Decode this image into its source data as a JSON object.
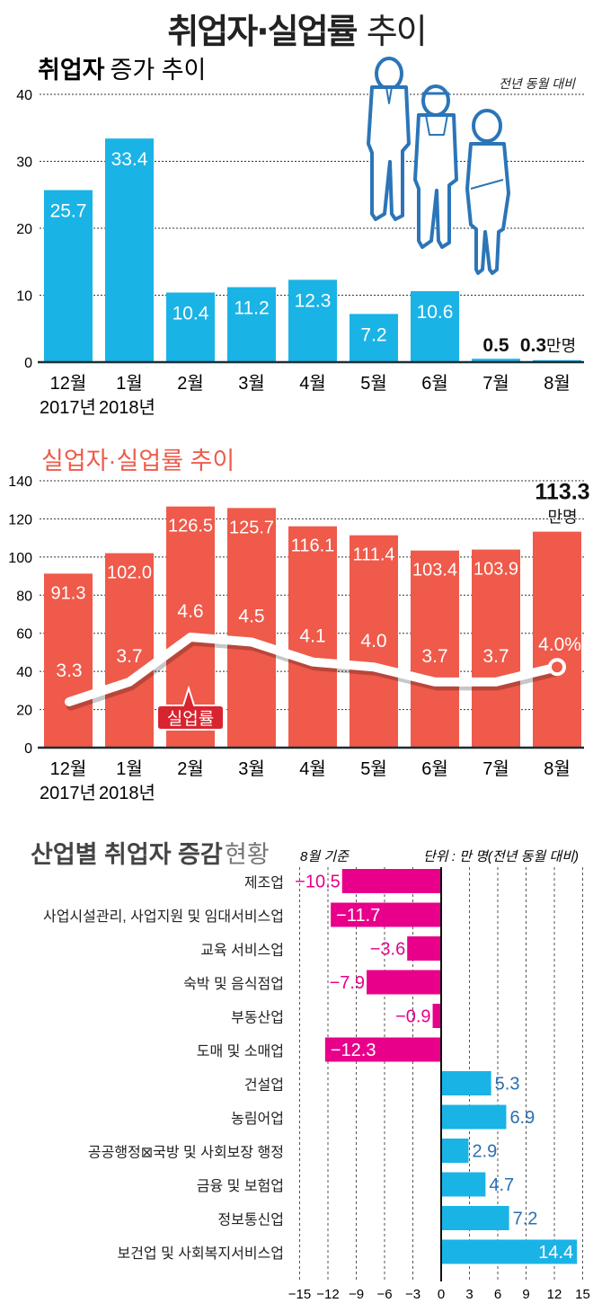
{
  "page": {
    "title_bold": "취업자·실업률",
    "title_light": "추이"
  },
  "colors": {
    "employment_blue": "#1ab3e6",
    "employment_title": "#2a6fb0",
    "unemployment_red": "#ef5a4a",
    "unemployment_title": "#ee5b4b",
    "rate_label_bg": "#d7242f",
    "negative_magenta": "#e8008a",
    "positive_blue": "#1ab3e6",
    "positive_label": "#2a6fb0",
    "grid": "#333333"
  },
  "chart_data": [
    {
      "type": "bar",
      "title": "취업자 증가 추이",
      "title_bold": "취업자",
      "title_light": "증가 추이",
      "note": "전년 동월 대비",
      "unit_suffix": "만명",
      "categories": [
        "12월",
        "1월",
        "2월",
        "3월",
        "4월",
        "5월",
        "6월",
        "7월",
        "8월"
      ],
      "year_labels": [
        "2017년",
        "2018년"
      ],
      "values": [
        25.7,
        33.4,
        10.4,
        11.2,
        12.3,
        7.2,
        10.6,
        0.5,
        0.3
      ],
      "value_labels": [
        "25.7",
        "33.4",
        "10.4",
        "11.2",
        "12.3",
        "7.2",
        "10.6",
        "0.5",
        "0.3"
      ],
      "ylim": [
        0,
        40
      ],
      "yticks": [
        0,
        10,
        20,
        30,
        40
      ],
      "ytick_labels": [
        "0",
        "10",
        "20",
        "30",
        "40"
      ],
      "grid": true,
      "illustration": "three-workers-icon"
    },
    {
      "type": "bar",
      "title": "실업자·실업률 추이",
      "categories": [
        "12월",
        "1월",
        "2월",
        "3월",
        "4월",
        "5월",
        "6월",
        "7월",
        "8월"
      ],
      "year_labels": [
        "2017년",
        "2018년"
      ],
      "series": [
        {
          "name": "실업자",
          "kind": "bar",
          "values": [
            91.3,
            102.0,
            126.5,
            125.7,
            116.1,
            111.4,
            103.4,
            103.9,
            113.3
          ],
          "value_labels": [
            "91.3",
            "102.0",
            "126.5",
            "125.7",
            "116.1",
            "111.4",
            "103.4",
            "103.9",
            "113.3"
          ]
        },
        {
          "name": "실업률",
          "kind": "line",
          "values": [
            3.3,
            3.7,
            4.6,
            4.5,
            4.1,
            4.0,
            3.7,
            3.7,
            4.0
          ],
          "value_labels": [
            "3.3",
            "3.7",
            "4.6",
            "4.5",
            "4.1",
            "4.0",
            "3.7",
            "3.7",
            "4.0%"
          ]
        }
      ],
      "last_bar_unit": "만명",
      "line_callout": "실업률",
      "ylim": [
        0,
        140
      ],
      "yticks": [
        0,
        20,
        40,
        60,
        80,
        100,
        120,
        140
      ],
      "ytick_labels": [
        "0",
        "20",
        "40",
        "60",
        "80",
        "100",
        "120",
        "140"
      ],
      "grid": true
    },
    {
      "type": "bar",
      "orientation": "horizontal",
      "title": "산업별 취업자 증감 현황",
      "title_bold": "산업별 취업자 증감",
      "title_light": "현황",
      "basis_note": "8월 기준",
      "unit_note": "단위 : 만 명(전년 동월 대비)",
      "categories": [
        "제조업",
        "사업시설관리, 사업지원 및 임대서비스업",
        "교육 서비스업",
        "숙박 및 음식점업",
        "부동산업",
        "도매 및 소매업",
        "건설업",
        "농림어업",
        "공공행정⊠국방 및 사회보장 행정",
        "금융 및 보험업",
        "정보통신업",
        "보건업 및 사회복지서비스업"
      ],
      "values": [
        -10.5,
        -11.7,
        -3.6,
        -7.9,
        -0.9,
        -12.3,
        5.3,
        6.9,
        2.9,
        4.7,
        7.2,
        14.4
      ],
      "value_labels": [
        "−10.5",
        "−11.7",
        "−3.6",
        "−7.9",
        "−0.9",
        "−12.3",
        "5.3",
        "6.9",
        "2.9",
        "4.7",
        "7.2",
        "14.4"
      ],
      "xlim": [
        -15,
        15
      ],
      "xticks": [
        -15,
        -12,
        -9,
        -6,
        -3,
        0,
        3,
        6,
        9,
        12,
        15
      ],
      "xtick_labels": [
        "−15",
        "−12",
        "−9",
        "−6",
        "−3",
        "0",
        "3",
        "6",
        "9",
        "12",
        "15"
      ],
      "grid": true
    }
  ]
}
